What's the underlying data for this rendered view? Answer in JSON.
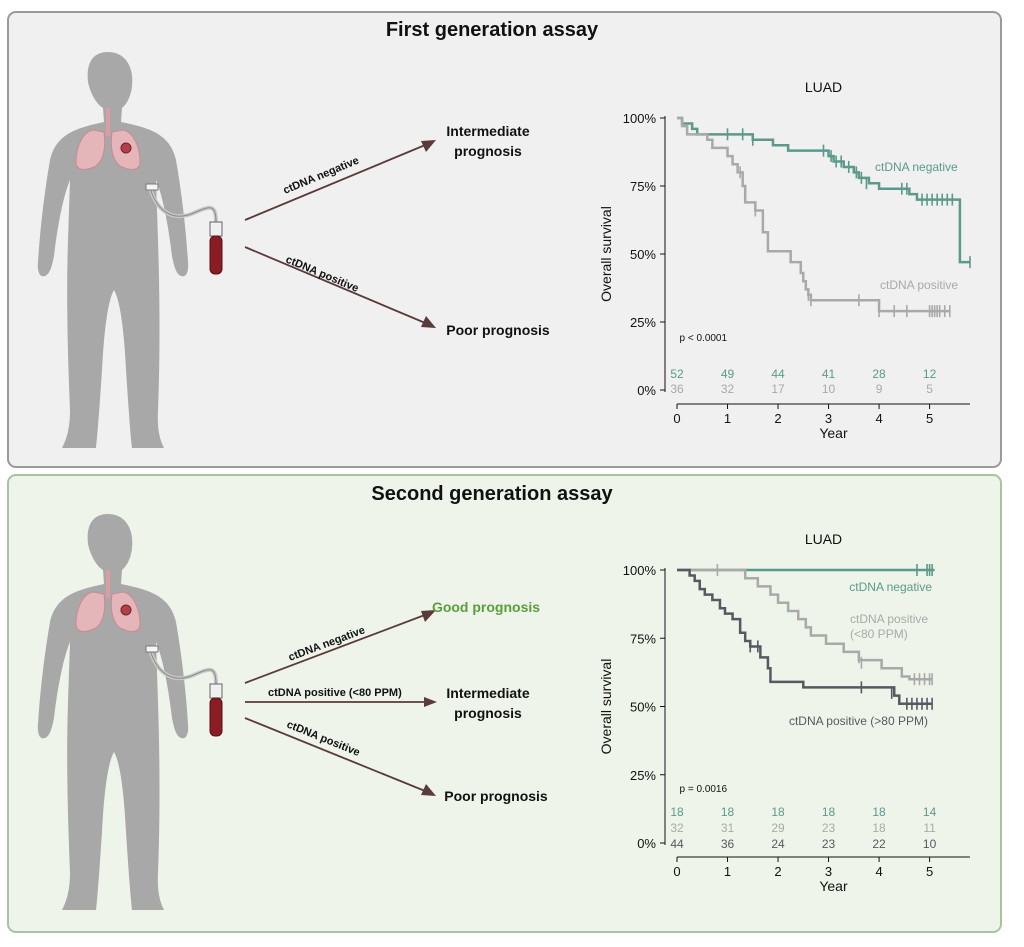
{
  "colors": {
    "panel1_bg": "#f0f0f0",
    "panel1_border": "#9a9a9a",
    "panel2_bg": "#eef4ea",
    "panel2_border": "#a9c39f",
    "teal": "#5b9a8b",
    "lightgray": "#a9a9a9",
    "darkgray": "#555a60",
    "arrow": "#5a3a3a",
    "good": "#5a9e3a",
    "blood": "#8a1c24"
  },
  "panels": [
    {
      "title": "First generation assay",
      "arrows": [
        {
          "label": "ctDNA negative",
          "outcome_lines": [
            "Intermediate",
            "prognosis"
          ],
          "good": false
        },
        {
          "label": "ctDNA positive",
          "outcome_lines": [
            "Poor prognosis"
          ],
          "good": false
        }
      ]
    },
    {
      "title": "Second generation assay",
      "arrows": [
        {
          "label": "ctDNA negative",
          "outcome_lines": [
            "Good prognosis"
          ],
          "good": true
        },
        {
          "label": "ctDNA positive (<80 PPM)",
          "outcome_lines": [
            "Intermediate",
            "prognosis"
          ],
          "good": false
        },
        {
          "label": "ctDNA positive",
          "outcome_lines": [
            "Poor prognosis"
          ],
          "good": false
        }
      ]
    }
  ],
  "chart_data": [
    {
      "type": "line",
      "title": "LUAD",
      "xlabel": "Year",
      "ylabel": "Overall survival",
      "xlim": [
        0,
        5.8
      ],
      "ylim": [
        0,
        100
      ],
      "xticks": [
        "0",
        "1",
        "2",
        "3",
        "4",
        "5"
      ],
      "yticks": [
        "0%",
        "25%",
        "50%",
        "75%",
        "100%"
      ],
      "pvalue": "p < 0.0001",
      "series": [
        {
          "name": "ctDNA negative",
          "color": "#5b9a8b",
          "steps": [
            [
              0,
              100
            ],
            [
              0.1,
              98
            ],
            [
              0.3,
              96
            ],
            [
              0.4,
              94
            ],
            [
              1.2,
              94
            ],
            [
              1.5,
              92
            ],
            [
              1.9,
              90
            ],
            [
              2.2,
              88
            ],
            [
              2.9,
              88
            ],
            [
              3.0,
              86
            ],
            [
              3.1,
              84
            ],
            [
              3.3,
              82
            ],
            [
              3.5,
              80
            ],
            [
              3.6,
              78
            ],
            [
              3.8,
              76
            ],
            [
              4.0,
              74
            ],
            [
              4.6,
              72
            ],
            [
              4.75,
              70
            ],
            [
              5.5,
              70
            ],
            [
              5.6,
              47
            ],
            [
              5.8,
              47
            ]
          ],
          "censors": [
            [
              1.0,
              94
            ],
            [
              1.3,
              94
            ],
            [
              1.5,
              92
            ],
            [
              2.9,
              88
            ],
            [
              3.05,
              86
            ],
            [
              3.15,
              84
            ],
            [
              3.25,
              84
            ],
            [
              3.4,
              82
            ],
            [
              3.55,
              80
            ],
            [
              3.65,
              78
            ],
            [
              3.75,
              76
            ],
            [
              4.45,
              74
            ],
            [
              4.55,
              74
            ],
            [
              4.85,
              70
            ],
            [
              4.95,
              70
            ],
            [
              5.05,
              70
            ],
            [
              5.15,
              70
            ],
            [
              5.25,
              70
            ],
            [
              5.35,
              70
            ],
            [
              5.45,
              70
            ],
            [
              5.8,
              47
            ]
          ]
        },
        {
          "name": "ctDNA positive",
          "color": "#a9a9a9",
          "steps": [
            [
              0,
              100
            ],
            [
              0.1,
              97
            ],
            [
              0.2,
              94
            ],
            [
              0.6,
              92
            ],
            [
              0.7,
              89
            ],
            [
              1.0,
              86
            ],
            [
              1.1,
              83
            ],
            [
              1.2,
              80
            ],
            [
              1.3,
              75
            ],
            [
              1.35,
              69
            ],
            [
              1.55,
              66
            ],
            [
              1.7,
              58
            ],
            [
              1.8,
              51
            ],
            [
              2.1,
              51
            ],
            [
              2.25,
              47
            ],
            [
              2.45,
              43
            ],
            [
              2.5,
              40
            ],
            [
              2.55,
              37
            ],
            [
              2.6,
              35
            ],
            [
              2.65,
              33
            ],
            [
              3.95,
              33
            ],
            [
              4.0,
              29
            ],
            [
              5.4,
              29
            ]
          ],
          "censors": [
            [
              1.25,
              80
            ],
            [
              1.55,
              66
            ],
            [
              2.6,
              35
            ],
            [
              2.65,
              33
            ],
            [
              3.6,
              33
            ],
            [
              4.0,
              29
            ],
            [
              4.3,
              29
            ],
            [
              4.55,
              29
            ],
            [
              5.0,
              29
            ],
            [
              5.05,
              29
            ],
            [
              5.1,
              29
            ],
            [
              5.15,
              29
            ],
            [
              5.2,
              29
            ],
            [
              5.3,
              29
            ],
            [
              5.4,
              29
            ]
          ]
        }
      ],
      "series_labels": [
        "ctDNA negative",
        "ctDNA positive"
      ],
      "risk_table": {
        "times": [
          0,
          1,
          2,
          3,
          4,
          5
        ],
        "rows": [
          {
            "color": "#5b9a8b",
            "values": [
              "52",
              "49",
              "44",
              "41",
              "28",
              "12"
            ]
          },
          {
            "color": "#a9a9a9",
            "values": [
              "36",
              "32",
              "17",
              "10",
              "9",
              "5"
            ]
          }
        ]
      }
    },
    {
      "type": "line",
      "title": "LUAD",
      "xlabel": "Year",
      "ylabel": "Overall survival",
      "xlim": [
        0,
        5.8
      ],
      "ylim": [
        0,
        100
      ],
      "xticks": [
        "0",
        "1",
        "2",
        "3",
        "4",
        "5"
      ],
      "yticks": [
        "0%",
        "25%",
        "50%",
        "75%",
        "100%"
      ],
      "pvalue": "p = 0.0016",
      "series": [
        {
          "name": "ctDNA negative",
          "color": "#5b9a8b",
          "steps": [
            [
              0,
              100
            ],
            [
              5.1,
              100
            ]
          ],
          "censors": [
            [
              4.75,
              100
            ],
            [
              4.95,
              100
            ],
            [
              5.0,
              100
            ],
            [
              5.05,
              100
            ]
          ]
        },
        {
          "name": "ctDNA positive (<80 PPM)",
          "color": "#a9a9a9",
          "steps": [
            [
              0,
              100
            ],
            [
              1.3,
              100
            ],
            [
              1.35,
              97
            ],
            [
              1.6,
              94
            ],
            [
              1.85,
              91
            ],
            [
              2.0,
              88
            ],
            [
              2.2,
              85
            ],
            [
              2.4,
              82
            ],
            [
              2.55,
              79
            ],
            [
              2.65,
              76
            ],
            [
              2.95,
              73
            ],
            [
              3.3,
              70
            ],
            [
              3.6,
              67
            ],
            [
              4.05,
              64
            ],
            [
              4.45,
              61
            ],
            [
              4.6,
              60
            ],
            [
              5.05,
              60
            ]
          ],
          "censors": [
            [
              0.8,
              100
            ],
            [
              3.6,
              68
            ],
            [
              3.65,
              66
            ],
            [
              4.7,
              60
            ],
            [
              4.8,
              60
            ],
            [
              4.9,
              60
            ],
            [
              5.0,
              60
            ],
            [
              5.05,
              60
            ]
          ]
        },
        {
          "name": "ctDNA positive (>80 PPM)",
          "color": "#555a60",
          "steps": [
            [
              0,
              100
            ],
            [
              0.25,
              98
            ],
            [
              0.35,
              96
            ],
            [
              0.45,
              93
            ],
            [
              0.55,
              91
            ],
            [
              0.7,
              89
            ],
            [
              0.85,
              86
            ],
            [
              0.95,
              84
            ],
            [
              1.1,
              82
            ],
            [
              1.25,
              77
            ],
            [
              1.35,
              74
            ],
            [
              1.45,
              72
            ],
            [
              1.65,
              68
            ],
            [
              1.8,
              64
            ],
            [
              1.85,
              59
            ],
            [
              2.4,
              59
            ],
            [
              2.5,
              57
            ],
            [
              4.2,
              57
            ],
            [
              4.3,
              54
            ],
            [
              4.4,
              51
            ],
            [
              5.05,
              51
            ]
          ],
          "censors": [
            [
              1.45,
              72
            ],
            [
              1.6,
              72
            ],
            [
              3.65,
              57
            ],
            [
              4.25,
              55
            ],
            [
              4.55,
              51
            ],
            [
              4.65,
              51
            ],
            [
              4.75,
              51
            ],
            [
              4.85,
              51
            ],
            [
              4.95,
              51
            ],
            [
              5.05,
              51
            ]
          ]
        }
      ],
      "series_labels": [
        "ctDNA negative",
        "ctDNA positive\n(<80 PPM)",
        "ctDNA positive (>80 PPM)"
      ],
      "risk_table": {
        "times": [
          0,
          1,
          2,
          3,
          4,
          5
        ],
        "rows": [
          {
            "color": "#5b9a8b",
            "values": [
              "18",
              "18",
              "18",
              "18",
              "18",
              "14"
            ]
          },
          {
            "color": "#a9a9a9",
            "values": [
              "32",
              "31",
              "29",
              "23",
              "18",
              "11"
            ]
          },
          {
            "color": "#555a60",
            "values": [
              "44",
              "36",
              "24",
              "23",
              "22",
              "10"
            ]
          }
        ]
      }
    }
  ]
}
